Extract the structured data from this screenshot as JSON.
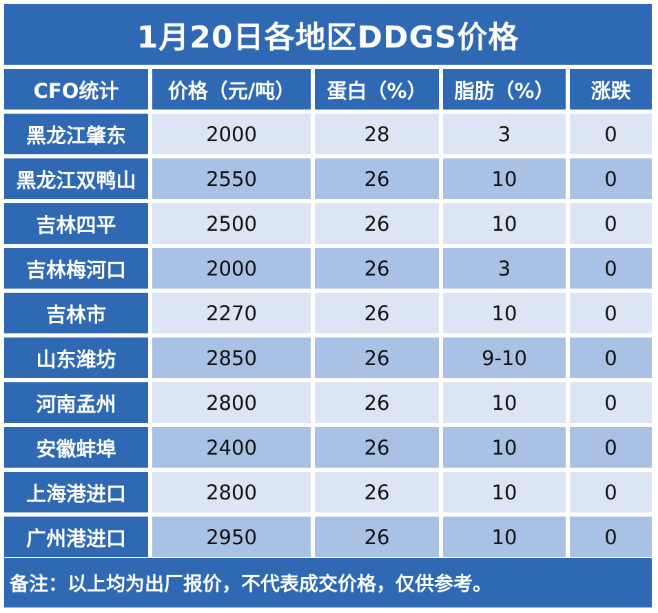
{
  "title": "1月20日各地区DDGS价格",
  "colors": {
    "header_bg": "#2f69b3",
    "row_light": "#dbe5f3",
    "row_dark": "#a9c1e5"
  },
  "headers": [
    "CFO统计",
    "价格（元/吨）",
    "蛋白（%）",
    "脂肪（%）",
    "涨跌"
  ],
  "rows": [
    {
      "region": "黑龙江肇东",
      "price": "2000",
      "protein": "28",
      "fat": "3",
      "change": "0"
    },
    {
      "region": "黑龙江双鸭山",
      "price": "2550",
      "protein": "26",
      "fat": "10",
      "change": "0"
    },
    {
      "region": "吉林四平",
      "price": "2500",
      "protein": "26",
      "fat": "10",
      "change": "0"
    },
    {
      "region": "吉林梅河口",
      "price": "2000",
      "protein": "26",
      "fat": "3",
      "change": "0"
    },
    {
      "region": "吉林市",
      "price": "2270",
      "protein": "26",
      "fat": "10",
      "change": "0"
    },
    {
      "region": "山东潍坊",
      "price": "2850",
      "protein": "26",
      "fat": "9-10",
      "change": "0"
    },
    {
      "region": "河南孟州",
      "price": "2800",
      "protein": "26",
      "fat": "10",
      "change": "0"
    },
    {
      "region": "安徽蚌埠",
      "price": "2400",
      "protein": "26",
      "fat": "10",
      "change": "0"
    },
    {
      "region": "上海港进口",
      "price": "2800",
      "protein": "26",
      "fat": "10",
      "change": "0"
    },
    {
      "region": "广州港进口",
      "price": "2950",
      "protein": "26",
      "fat": "10",
      "change": "0"
    }
  ],
  "note": "备注：以上均为出厂报价，不代表成交价格，仅供参考。"
}
